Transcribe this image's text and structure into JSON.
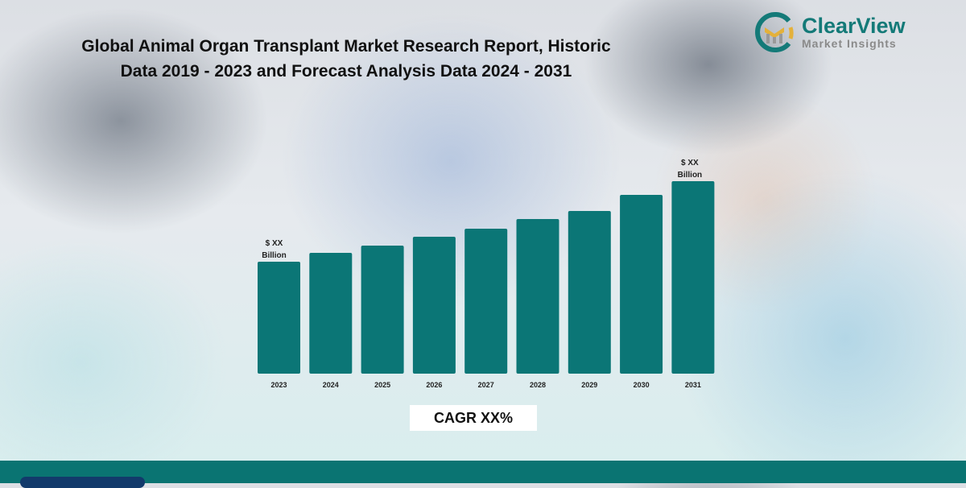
{
  "title_line1": "Global Animal Organ Transplant Market Research Report, Historic",
  "title_line2": "Data 2019 - 2023 and Forecast Analysis Data 2024 - 2031",
  "logo": {
    "name": "ClearView",
    "sub": "Market Insights"
  },
  "chart_data": {
    "type": "bar",
    "title": "Global Animal Organ Transplant Market Research Report, Historic Data 2019 - 2023 and Forecast Analysis Data 2024 - 2031",
    "categories": [
      "2023",
      "2024",
      "2025",
      "2026",
      "2027",
      "2028",
      "2029",
      "2030",
      "2031"
    ],
    "values": [
      139,
      150,
      159,
      170,
      180,
      192,
      202,
      222,
      239
    ],
    "value_note": "relative heights; values unlabeled",
    "annotations": [
      {
        "category": "2023",
        "line1": "$ XX",
        "line2": "Billion"
      },
      {
        "category": "2031",
        "line1": "$ XX",
        "line2": "Billion"
      }
    ],
    "xlabel": "",
    "ylabel": "",
    "ylim": [
      0,
      239
    ],
    "grid": false,
    "bar_color": "#0b7676"
  },
  "cagr": "CAGR XX%",
  "colors": {
    "accent": "#0a7472",
    "logo_gold": "#e4b13a"
  }
}
